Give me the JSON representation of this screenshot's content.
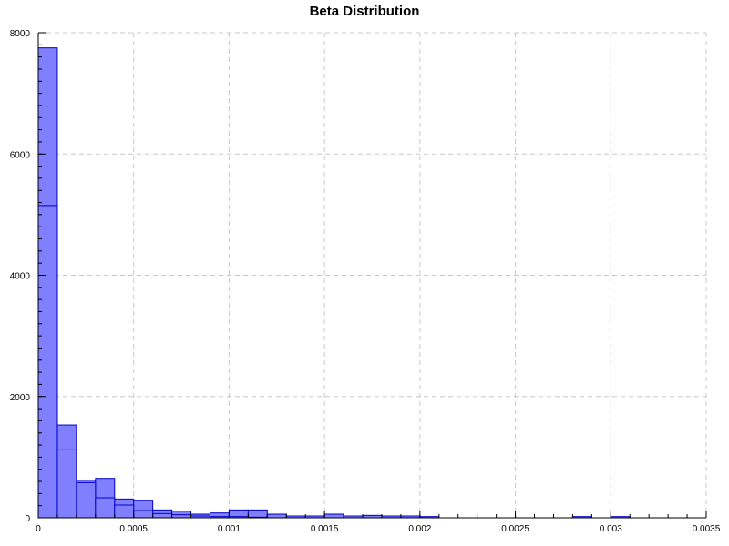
{
  "chart_data": {
    "type": "bar",
    "title": "Beta Distribution",
    "xlabel": "",
    "ylabel": "",
    "xlim": [
      0,
      0.0035
    ],
    "ylim": [
      0,
      8000
    ],
    "grid": true,
    "x_ticks": [
      0,
      0.0005,
      0.001,
      0.0015,
      0.002,
      0.0025,
      0.003,
      0.0035
    ],
    "x_tick_labels": [
      "0",
      "0.0005",
      "0.001",
      "0.0015",
      "0.002",
      "0.0025",
      "0.003",
      "0.0035"
    ],
    "y_ticks": [
      0,
      2000,
      4000,
      6000,
      8000
    ],
    "y_tick_labels": [
      "0",
      "2000",
      "4000",
      "6000",
      "8000"
    ],
    "colors": {
      "fill": "#8080ff",
      "stroke": "#0000c8"
    },
    "series": [
      {
        "bins": [
          {
            "x0": 0.0,
            "x1": 0.0001,
            "y": 7750
          },
          {
            "x0": 0.0001,
            "x1": 0.0002,
            "y": 1530
          },
          {
            "x0": 0.0002,
            "x1": 0.0003,
            "y": 620
          },
          {
            "x0": 0.0003,
            "x1": 0.0004,
            "y": 650
          },
          {
            "x0": 0.0004,
            "x1": 0.0005,
            "y": 310
          },
          {
            "x0": 0.0005,
            "x1": 0.0006,
            "y": 290
          },
          {
            "x0": 0.0006,
            "x1": 0.0007,
            "y": 130
          },
          {
            "x0": 0.0007,
            "x1": 0.0008,
            "y": 110
          },
          {
            "x0": 0.0008,
            "x1": 0.0009,
            "y": 60
          },
          {
            "x0": 0.0009,
            "x1": 0.001,
            "y": 80
          },
          {
            "x0": 0.001,
            "x1": 0.0011,
            "y": 130
          },
          {
            "x0": 0.0011,
            "x1": 0.0012,
            "y": 130
          },
          {
            "x0": 0.0012,
            "x1": 0.0013,
            "y": 60
          },
          {
            "x0": 0.0013,
            "x1": 0.0014,
            "y": 30
          },
          {
            "x0": 0.0014,
            "x1": 0.0015,
            "y": 30
          },
          {
            "x0": 0.0015,
            "x1": 0.0016,
            "y": 60
          },
          {
            "x0": 0.0016,
            "x1": 0.0017,
            "y": 30
          },
          {
            "x0": 0.0017,
            "x1": 0.0018,
            "y": 40
          },
          {
            "x0": 0.0018,
            "x1": 0.0019,
            "y": 30
          },
          {
            "x0": 0.0019,
            "x1": 0.002,
            "y": 30
          },
          {
            "x0": 0.002,
            "x1": 0.0021,
            "y": 20
          },
          {
            "x0": 0.0028,
            "x1": 0.0029,
            "y": 20
          },
          {
            "x0": 0.003,
            "x1": 0.0031,
            "y": 20
          }
        ]
      },
      {
        "bins": [
          {
            "x0": 0.0,
            "x1": 0.0001,
            "y": 5150
          },
          {
            "x0": 0.0001,
            "x1": 0.0002,
            "y": 1120
          },
          {
            "x0": 0.0002,
            "x1": 0.0003,
            "y": 580
          },
          {
            "x0": 0.0003,
            "x1": 0.0004,
            "y": 330
          },
          {
            "x0": 0.0004,
            "x1": 0.0005,
            "y": 210
          },
          {
            "x0": 0.0005,
            "x1": 0.0006,
            "y": 120
          },
          {
            "x0": 0.0006,
            "x1": 0.0007,
            "y": 70
          },
          {
            "x0": 0.0007,
            "x1": 0.0008,
            "y": 50
          },
          {
            "x0": 0.0008,
            "x1": 0.0009,
            "y": 30
          },
          {
            "x0": 0.0009,
            "x1": 0.001,
            "y": 20
          },
          {
            "x0": 0.001,
            "x1": 0.0011,
            "y": 20
          },
          {
            "x0": 0.0011,
            "x1": 0.0012,
            "y": 10
          }
        ]
      }
    ]
  }
}
